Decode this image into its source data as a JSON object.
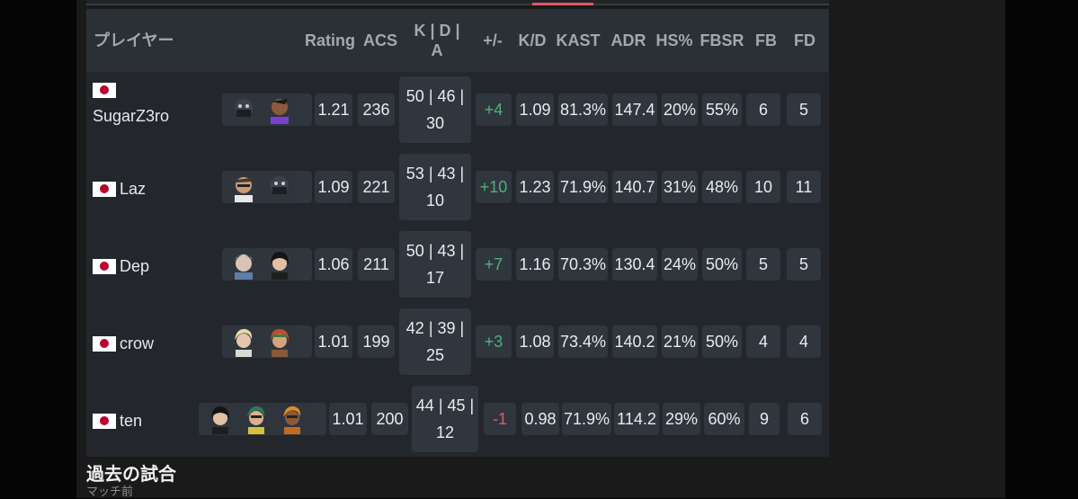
{
  "header": {
    "player": "プレイヤー",
    "rating": "Rating",
    "acs": "ACS",
    "kda_line1": "K | D |",
    "kda_line2": "A",
    "plus_minus": "+/-",
    "kd": "K/D",
    "kast": "KAST",
    "adr": "ADR",
    "hs": "HS%",
    "fbsr": "FBSR",
    "fb": "FB",
    "fd": "FD"
  },
  "players": [
    {
      "name": "SugarZ3ro",
      "flag": "jp",
      "agents": [
        "agent-masked-icon",
        "agent-purple-icon"
      ],
      "rating": "1.21",
      "acs": "236",
      "kda_top": "50 | 46 |",
      "kda_bottom": "30",
      "plus_minus": "+4",
      "kd": "1.09",
      "kast": "81.3%",
      "adr": "147.4",
      "hs": "20%",
      "fbsr": "55%",
      "fb": "6",
      "fd": "5"
    },
    {
      "name": "Laz",
      "flag": "jp",
      "agents": [
        "agent-glasses-icon",
        "agent-masked-icon"
      ],
      "rating": "1.09",
      "acs": "221",
      "kda_top": "53 | 43 |",
      "kda_bottom": "10",
      "plus_minus": "+10",
      "kd": "1.23",
      "kast": "71.9%",
      "adr": "140.7",
      "hs": "31%",
      "fbsr": "48%",
      "fb": "10",
      "fd": "11"
    },
    {
      "name": "Dep",
      "flag": "jp",
      "agents": [
        "agent-white-hair-icon",
        "agent-dark-hair-icon"
      ],
      "rating": "1.06",
      "acs": "211",
      "kda_top": "50 | 43 |",
      "kda_bottom": "17",
      "plus_minus": "+7",
      "kd": "1.16",
      "kast": "70.3%",
      "adr": "130.4",
      "hs": "24%",
      "fbsr": "50%",
      "fb": "5",
      "fd": "5"
    },
    {
      "name": "crow",
      "flag": "jp",
      "agents": [
        "agent-blonde-icon",
        "agent-redhead-icon"
      ],
      "rating": "1.01",
      "acs": "199",
      "kda_top": "42 | 39 |",
      "kda_bottom": "25",
      "plus_minus": "+3",
      "kd": "1.08",
      "kast": "73.4%",
      "adr": "140.2",
      "hs": "21%",
      "fbsr": "50%",
      "fb": "4",
      "fd": "4"
    },
    {
      "name": "ten",
      "flag": "jp",
      "agents": [
        "agent-dark-hair-icon",
        "agent-green-icon",
        "agent-orange-icon"
      ],
      "rating": "1.01",
      "acs": "200",
      "kda_top": "44 | 45 |",
      "kda_bottom": "12",
      "plus_minus": "-1",
      "kd": "0.98",
      "kast": "71.9%",
      "adr": "114.2",
      "hs": "29%",
      "fbsr": "60%",
      "fb": "9",
      "fd": "6"
    }
  ],
  "footer": {
    "title": "過去の試合",
    "subtitle": "マッチ前"
  },
  "colors": {
    "positive": "#4fb17a",
    "negative": "#e25a6a",
    "accent": "#e0566a"
  }
}
